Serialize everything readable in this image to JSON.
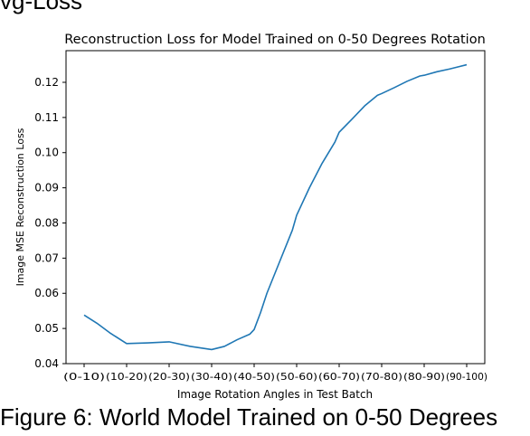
{
  "page": {
    "top_fragment": "vg-Loss",
    "figure_caption": "Figure 6: World Model Trained on 0-50 Degrees"
  },
  "chart_data": {
    "type": "line",
    "title": "Reconstruction Loss for Model Trained on 0-50 Degrees Rotation",
    "xlabel": "Image Rotation Angles in Test Batch",
    "ylabel": "Image MSE Reconstruction Loss",
    "categories": [
      "(0-10)",
      "(10-20)",
      "(20-30)",
      "(30-40)",
      "(40-50)",
      "(50-60)",
      "(60-70)",
      "(70-80)",
      "(80-90)",
      "(90-100)"
    ],
    "ylim": [
      0.04,
      0.129
    ],
    "yticks": [
      0.04,
      0.05,
      0.06,
      0.07,
      0.08,
      0.09,
      0.1,
      0.11,
      0.12
    ],
    "ytick_labels": [
      "0.04",
      "0.05",
      "0.06",
      "0.07",
      "0.08",
      "0.09",
      "0.10",
      "0.11",
      "0.12"
    ],
    "line_color": "#1f77b4",
    "grid": false,
    "series": [
      {
        "x": [
          0,
          0.3,
          0.6,
          1.0,
          1.5,
          2.0,
          2.5,
          3.0,
          3.3,
          3.6,
          3.9,
          4.0,
          4.15,
          4.3,
          4.6,
          4.9,
          5.0,
          5.3,
          5.6,
          5.9,
          6.0,
          6.3,
          6.6,
          6.9,
          7.0,
          7.3,
          7.6,
          7.9,
          8.0,
          8.3,
          8.6,
          9.0
        ],
        "y": [
          0.0538,
          0.0515,
          0.0488,
          0.0457,
          0.0459,
          0.0462,
          0.0449,
          0.044,
          0.0449,
          0.0468,
          0.0484,
          0.0497,
          0.0545,
          0.06,
          0.069,
          0.078,
          0.0822,
          0.09,
          0.097,
          0.103,
          0.1058,
          0.1095,
          0.1133,
          0.1163,
          0.1168,
          0.1185,
          0.1203,
          0.1218,
          0.122,
          0.123,
          0.1238,
          0.125
        ]
      }
    ]
  }
}
